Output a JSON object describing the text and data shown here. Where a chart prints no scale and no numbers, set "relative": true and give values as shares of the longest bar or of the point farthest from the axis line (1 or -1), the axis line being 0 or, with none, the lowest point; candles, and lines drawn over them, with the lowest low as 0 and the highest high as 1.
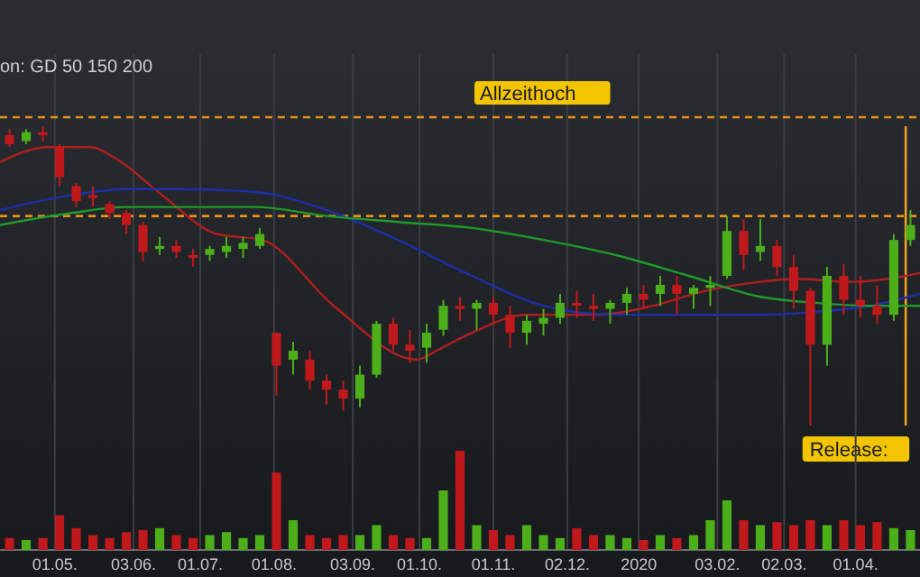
{
  "chart_data": [
    {
      "type": "candlestick",
      "subtitle": "on: GD 50 150 200",
      "relative": true,
      "tick_labels": false,
      "grid": "x",
      "xlim": [
        "2019-04-08",
        "2020-04-28"
      ],
      "xticks": [
        {
          "value": "2019-05-01",
          "label": null
        },
        {
          "value": "2019-06-03",
          "label": null
        },
        {
          "value": "2019-07-01",
          "label": null
        },
        {
          "value": "2019-08-01",
          "label": null
        },
        {
          "value": "2019-09-03",
          "label": null
        },
        {
          "value": "2019-10-01",
          "label": null
        },
        {
          "value": "2019-11-01",
          "label": null
        },
        {
          "value": "2019-12-02",
          "label": null
        },
        {
          "value": "2020-01-01",
          "label": null
        },
        {
          "value": "2020-02-03",
          "label": null
        },
        {
          "value": "2020-03-02",
          "label": null
        },
        {
          "value": "2020-04-01",
          "label": null
        }
      ],
      "x": [
        "2019-04-12",
        "2019-04-19",
        "2019-04-26",
        "2019-05-03",
        "2019-05-10",
        "2019-05-17",
        "2019-05-24",
        "2019-05-31",
        "2019-06-07",
        "2019-06-14",
        "2019-06-21",
        "2019-06-28",
        "2019-07-05",
        "2019-07-12",
        "2019-07-19",
        "2019-07-26",
        "2019-08-02",
        "2019-08-09",
        "2019-08-16",
        "2019-08-23",
        "2019-08-30",
        "2019-09-06",
        "2019-09-13",
        "2019-09-20",
        "2019-09-27",
        "2019-10-04",
        "2019-10-11",
        "2019-10-18",
        "2019-10-25",
        "2019-11-01",
        "2019-11-08",
        "2019-11-15",
        "2019-11-22",
        "2019-11-29",
        "2019-12-06",
        "2019-12-13",
        "2019-12-20",
        "2019-12-27",
        "2020-01-03",
        "2020-01-10",
        "2020-01-17",
        "2020-01-24",
        "2020-01-31",
        "2020-02-07",
        "2020-02-14",
        "2020-02-21",
        "2020-02-28",
        "2020-03-06",
        "2020-03-13",
        "2020-03-20",
        "2020-03-27",
        "2020-04-03",
        "2020-04-10",
        "2020-04-17",
        "2020-04-24"
      ],
      "ohlc": [
        [
          0.97,
          0.99,
          0.93,
          0.94
        ],
        [
          0.95,
          0.99,
          0.94,
          0.98
        ],
        [
          0.98,
          1.0,
          0.95,
          0.97
        ],
        [
          0.93,
          0.94,
          0.8,
          0.83
        ],
        [
          0.8,
          0.81,
          0.73,
          0.75
        ],
        [
          0.77,
          0.8,
          0.73,
          0.76
        ],
        [
          0.74,
          0.75,
          0.69,
          0.71
        ],
        [
          0.71,
          0.72,
          0.64,
          0.67
        ],
        [
          0.67,
          0.68,
          0.55,
          0.58
        ],
        [
          0.59,
          0.63,
          0.57,
          0.6
        ],
        [
          0.6,
          0.62,
          0.56,
          0.58
        ],
        [
          0.57,
          0.59,
          0.53,
          0.56
        ],
        [
          0.57,
          0.6,
          0.55,
          0.59
        ],
        [
          0.58,
          0.63,
          0.56,
          0.6
        ],
        [
          0.59,
          0.63,
          0.56,
          0.61
        ],
        [
          0.6,
          0.66,
          0.59,
          0.64
        ],
        [
          0.31,
          0.31,
          0.1,
          0.2
        ],
        [
          0.22,
          0.28,
          0.17,
          0.25
        ],
        [
          0.22,
          0.25,
          0.12,
          0.15
        ],
        [
          0.15,
          0.17,
          0.07,
          0.12
        ],
        [
          0.12,
          0.15,
          0.05,
          0.09
        ],
        [
          0.09,
          0.2,
          0.06,
          0.17
        ],
        [
          0.17,
          0.35,
          0.16,
          0.34
        ],
        [
          0.34,
          0.36,
          0.25,
          0.27
        ],
        [
          0.27,
          0.32,
          0.21,
          0.25
        ],
        [
          0.26,
          0.34,
          0.21,
          0.31
        ],
        [
          0.32,
          0.42,
          0.3,
          0.4
        ],
        [
          0.4,
          0.43,
          0.35,
          0.39
        ],
        [
          0.39,
          0.42,
          0.32,
          0.41
        ],
        [
          0.41,
          0.43,
          0.34,
          0.37
        ],
        [
          0.37,
          0.4,
          0.26,
          0.31
        ],
        [
          0.31,
          0.37,
          0.27,
          0.35
        ],
        [
          0.34,
          0.39,
          0.3,
          0.36
        ],
        [
          0.36,
          0.44,
          0.34,
          0.41
        ],
        [
          0.41,
          0.45,
          0.36,
          0.4
        ],
        [
          0.4,
          0.44,
          0.35,
          0.39
        ],
        [
          0.39,
          0.42,
          0.34,
          0.41
        ],
        [
          0.41,
          0.46,
          0.37,
          0.44
        ],
        [
          0.44,
          0.47,
          0.39,
          0.42
        ],
        [
          0.44,
          0.5,
          0.4,
          0.47
        ],
        [
          0.47,
          0.5,
          0.37,
          0.44
        ],
        [
          0.44,
          0.47,
          0.39,
          0.46
        ],
        [
          0.46,
          0.5,
          0.4,
          0.47
        ],
        [
          0.5,
          0.7,
          0.49,
          0.65
        ],
        [
          0.65,
          0.69,
          0.52,
          0.57
        ],
        [
          0.58,
          0.69,
          0.55,
          0.6
        ],
        [
          0.6,
          0.62,
          0.5,
          0.53
        ],
        [
          0.53,
          0.57,
          0.39,
          0.45
        ],
        [
          0.45,
          0.46,
          0.0,
          0.27
        ],
        [
          0.27,
          0.53,
          0.2,
          0.5
        ],
        [
          0.5,
          0.54,
          0.37,
          0.42
        ],
        [
          0.42,
          0.5,
          0.36,
          0.4
        ],
        [
          0.4,
          0.47,
          0.34,
          0.37
        ],
        [
          0.37,
          0.64,
          0.35,
          0.62
        ],
        [
          0.62,
          0.72,
          0.6,
          0.67
        ]
      ],
      "colors": [
        "#c0191c",
        "#4caf1a",
        "#c0191c",
        "#c0191c",
        "#c0191c",
        "#c0191c",
        "#c0191c",
        "#c0191c",
        "#c0191c",
        "#4caf1a",
        "#c0191c",
        "#c0191c",
        "#4caf1a",
        "#4caf1a",
        "#4caf1a",
        "#4caf1a",
        "#c0191c",
        "#4caf1a",
        "#c0191c",
        "#c0191c",
        "#c0191c",
        "#4caf1a",
        "#4caf1a",
        "#c0191c",
        "#c0191c",
        "#4caf1a",
        "#4caf1a",
        "#c0191c",
        "#4caf1a",
        "#c0191c",
        "#c0191c",
        "#4caf1a",
        "#4caf1a",
        "#4caf1a",
        "#c0191c",
        "#c0191c",
        "#4caf1a",
        "#4caf1a",
        "#c0191c",
        "#4caf1a",
        "#c0191c",
        "#4caf1a",
        "#4caf1a",
        "#4caf1a",
        "#c0191c",
        "#4caf1a",
        "#c0191c",
        "#c0191c",
        "#c0191c",
        "#4caf1a",
        "#c0191c",
        "#c0191c",
        "#c0191c",
        "#4caf1a",
        "#4caf1a"
      ],
      "series": [
        {
          "type": "line",
          "color": "#b01e1e",
          "x": [
            "2019-04-08",
            "2019-04-28",
            "2019-05-16",
            "2019-05-27",
            "2019-06-15",
            "2019-07-08",
            "2019-07-27",
            "2019-08-26",
            "2019-09-30",
            "2019-10-08",
            "2019-10-23",
            "2019-11-15",
            "2019-11-30",
            "2019-12-15",
            "2020-01-07",
            "2020-01-29",
            "2020-02-21",
            "2020-03-07",
            "2020-03-30",
            "2020-04-22",
            "2020-04-28"
          ],
          "values": [
            0.88,
            0.93,
            0.93,
            0.89,
            0.77,
            0.64,
            0.62,
            0.4,
            0.22,
            0.25,
            0.31,
            0.37,
            0.37,
            0.37,
            0.4,
            0.45,
            0.48,
            0.49,
            0.48,
            0.5,
            0.51
          ]
        },
        {
          "type": "line",
          "color": "#1c2fa8",
          "x": [
            "2019-04-08",
            "2019-05-08",
            "2019-05-31",
            "2019-06-23",
            "2019-07-24",
            "2019-08-23",
            "2019-09-22",
            "2019-10-23",
            "2019-11-22",
            "2019-12-22",
            "2020-01-22",
            "2020-02-21",
            "2020-03-15",
            "2020-04-07",
            "2020-04-28"
          ],
          "values": [
            0.72,
            0.77,
            0.79,
            0.79,
            0.78,
            0.72,
            0.62,
            0.5,
            0.4,
            0.37,
            0.37,
            0.37,
            0.38,
            0.4,
            0.44
          ]
        },
        {
          "type": "line",
          "color": "#1f9a2a",
          "x": [
            "2019-04-08",
            "2019-05-08",
            "2019-05-31",
            "2019-06-23",
            "2019-07-24",
            "2019-08-23",
            "2019-09-22",
            "2019-10-23",
            "2019-11-22",
            "2019-12-22",
            "2020-01-22",
            "2020-02-21",
            "2020-03-15",
            "2020-04-07",
            "2020-04-28"
          ],
          "values": [
            0.67,
            0.71,
            0.73,
            0.73,
            0.73,
            0.7,
            0.68,
            0.66,
            0.62,
            0.57,
            0.5,
            0.43,
            0.41,
            0.4,
            0.4
          ]
        }
      ],
      "ref_lines": [
        {
          "axis": "y",
          "value": 1.03,
          "label": "Allzeithoch",
          "color": "#e8901a",
          "line_style": "dashed"
        },
        {
          "axis": "y",
          "value": 0.7,
          "color": "#e8901a",
          "line_style": "dashed"
        },
        {
          "axis": "x",
          "value": "2020-04-22",
          "label": "Release:",
          "color": "#f0a020"
        }
      ]
    },
    {
      "type": "bar",
      "relative": true,
      "tick_labels": "x",
      "grid": "x",
      "xlim": [
        "2019-04-08",
        "2020-04-28"
      ],
      "xticks": [
        {
          "value": "2019-05-01",
          "label": "01.05."
        },
        {
          "value": "2019-06-03",
          "label": "03.06."
        },
        {
          "value": "2019-07-01",
          "label": "01.07."
        },
        {
          "value": "2019-08-01",
          "label": "01.08."
        },
        {
          "value": "2019-09-03",
          "label": "03.09."
        },
        {
          "value": "2019-10-01",
          "label": "01.10."
        },
        {
          "value": "2019-11-01",
          "label": "01.11."
        },
        {
          "value": "2019-12-02",
          "label": "02.12."
        },
        {
          "value": "2020-01-01",
          "label": "2020"
        },
        {
          "value": "2020-02-03",
          "label": "03.02."
        },
        {
          "value": "2020-03-02",
          "label": "02.03."
        },
        {
          "value": "2020-04-01",
          "label": "01.04."
        }
      ],
      "x": [
        "2019-04-12",
        "2019-04-19",
        "2019-04-26",
        "2019-05-03",
        "2019-05-10",
        "2019-05-17",
        "2019-05-24",
        "2019-05-31",
        "2019-06-07",
        "2019-06-14",
        "2019-06-21",
        "2019-06-28",
        "2019-07-05",
        "2019-07-12",
        "2019-07-19",
        "2019-07-26",
        "2019-08-02",
        "2019-08-09",
        "2019-08-16",
        "2019-08-23",
        "2019-08-30",
        "2019-09-06",
        "2019-09-13",
        "2019-09-20",
        "2019-09-27",
        "2019-10-04",
        "2019-10-11",
        "2019-10-18",
        "2019-10-25",
        "2019-11-01",
        "2019-11-08",
        "2019-11-15",
        "2019-11-22",
        "2019-11-29",
        "2019-12-06",
        "2019-12-13",
        "2019-12-20",
        "2019-12-27",
        "2020-01-03",
        "2020-01-10",
        "2020-01-17",
        "2020-01-24",
        "2020-01-31",
        "2020-02-07",
        "2020-02-14",
        "2020-02-21",
        "2020-02-28",
        "2020-03-06",
        "2020-03-13",
        "2020-03-20",
        "2020-03-27",
        "2020-04-03",
        "2020-04-10",
        "2020-04-17",
        "2020-04-24"
      ],
      "values": [
        0.12,
        0.1,
        0.12,
        0.35,
        0.22,
        0.15,
        0.12,
        0.18,
        0.2,
        0.22,
        0.15,
        0.12,
        0.15,
        0.18,
        0.12,
        0.15,
        0.78,
        0.3,
        0.15,
        0.12,
        0.15,
        0.15,
        0.25,
        0.15,
        0.12,
        0.12,
        0.6,
        1.0,
        0.25,
        0.2,
        0.15,
        0.25,
        0.15,
        0.12,
        0.22,
        0.15,
        0.15,
        0.12,
        0.1,
        0.15,
        0.12,
        0.15,
        0.3,
        0.5,
        0.3,
        0.25,
        0.28,
        0.25,
        0.3,
        0.25,
        0.3,
        0.25,
        0.28,
        0.22,
        0.2
      ],
      "colors": [
        "#c0191c",
        "#4caf1a",
        "#c0191c",
        "#c0191c",
        "#c0191c",
        "#c0191c",
        "#c0191c",
        "#c0191c",
        "#c0191c",
        "#4caf1a",
        "#c0191c",
        "#c0191c",
        "#4caf1a",
        "#4caf1a",
        "#4caf1a",
        "#4caf1a",
        "#c0191c",
        "#4caf1a",
        "#c0191c",
        "#c0191c",
        "#c0191c",
        "#4caf1a",
        "#4caf1a",
        "#c0191c",
        "#c0191c",
        "#4caf1a",
        "#4caf1a",
        "#c0191c",
        "#4caf1a",
        "#c0191c",
        "#c0191c",
        "#4caf1a",
        "#4caf1a",
        "#4caf1a",
        "#c0191c",
        "#c0191c",
        "#4caf1a",
        "#4caf1a",
        "#c0191c",
        "#4caf1a",
        "#c0191c",
        "#4caf1a",
        "#4caf1a",
        "#4caf1a",
        "#c0191c",
        "#4caf1a",
        "#c0191c",
        "#c0191c",
        "#c0191c",
        "#4caf1a",
        "#c0191c",
        "#c0191c",
        "#c0191c",
        "#4caf1a",
        "#4caf1a"
      ]
    }
  ]
}
